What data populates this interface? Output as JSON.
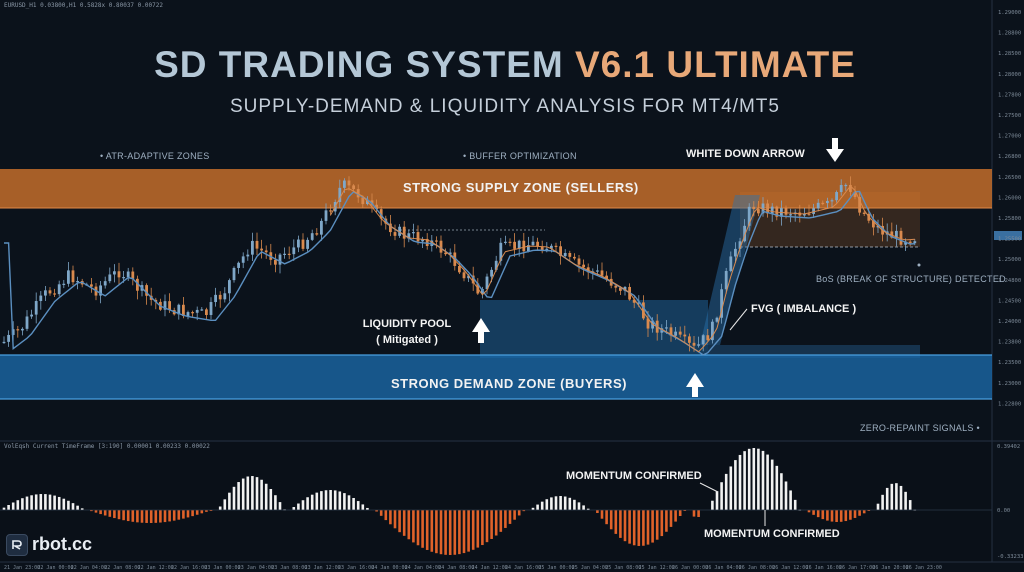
{
  "chart_header": "EURUSD_H1  0.03800,H1 0.5828x 0.80037 0.00722",
  "title": {
    "part1": "SD TRADING SYSTEM",
    "part2": "V6.1 ULTIMATE"
  },
  "subtitle": "SUPPLY-DEMAND & LIQUIDITY ANALYSIS FOR MT4/MT5",
  "features": {
    "atr": "• ATR-ADAPTIVE ZONES",
    "buffer": "• BUFFER OPTIMIZATION",
    "zero_repaint": "ZERO-REPAINT SIGNALS  •"
  },
  "zones": {
    "supply": "STRONG SUPPLY ZONE (SELLERS)",
    "demand": "STRONG DEMAND ZONE (BUYERS)"
  },
  "annotations": {
    "white_arrow": "WHITE DOWN ARROW",
    "liquidity_line1": "LIQUIDITY POOL",
    "liquidity_line2": "( Mitigated )",
    "fvg": "FVG ( IMBALANCE )",
    "bos": "BoS (BREAK OF STRUCTURE) DETECTED",
    "momentum_top": "MOMENTUM CONFIRMED",
    "momentum_bottom": "MOMENTUM CONFIRMED"
  },
  "indicator_header": "VolEqsh Current TimeFrame [3:190] 0.00001 0.00233 0.00022",
  "logo": {
    "text": "rbot.cc",
    "icon": "robot-icon"
  },
  "price_axis": [
    "1.29000",
    "1.28800",
    "1.28500",
    "1.28000",
    "1.27800",
    "1.27500",
    "1.27000",
    "1.26800",
    "1.26500",
    "1.26000",
    "1.25800",
    "1.25500",
    "1.25000",
    "1.24800",
    "1.24500",
    "1.24000",
    "1.23800",
    "1.23500",
    "1.23000",
    "1.22800"
  ],
  "indicator_axis": [
    "0.39402",
    "0.00",
    "-0.33233"
  ],
  "time_axis": [
    "21 Jan 23:00",
    "22 Jan 00:00",
    "22 Jan 04:00",
    "22 Jan 08:00",
    "22 Jan 12:00",
    "22 Jan 16:00",
    "23 Jan 00:00",
    "23 Jan 04:00",
    "23 Jan 08:00",
    "23 Jan 12:00",
    "23 Jan 16:00",
    "24 Jan 00:00",
    "24 Jan 04:00",
    "24 Jan 08:00",
    "24 Jan 12:00",
    "24 Jan 16:00",
    "25 Jan 00:00",
    "25 Jan 04:00",
    "25 Jan 08:00",
    "25 Jan 12:00",
    "26 Jan 00:00",
    "26 Jan 04:00",
    "26 Jan 08:00",
    "26 Jan 12:00",
    "26 Jan 16:00",
    "26 Jan 17:00",
    "26 Jan 20:00",
    "26 Jan 23:00"
  ],
  "colors": {
    "supply": "#d4762e",
    "demand": "#1e6fae",
    "bull_candle": "#7fa7c8",
    "bear_candle": "#d98a4e",
    "hist_pos": "#f2f2f2",
    "hist_neg": "#e0622a",
    "ma_line": "#5b8fc0"
  }
}
